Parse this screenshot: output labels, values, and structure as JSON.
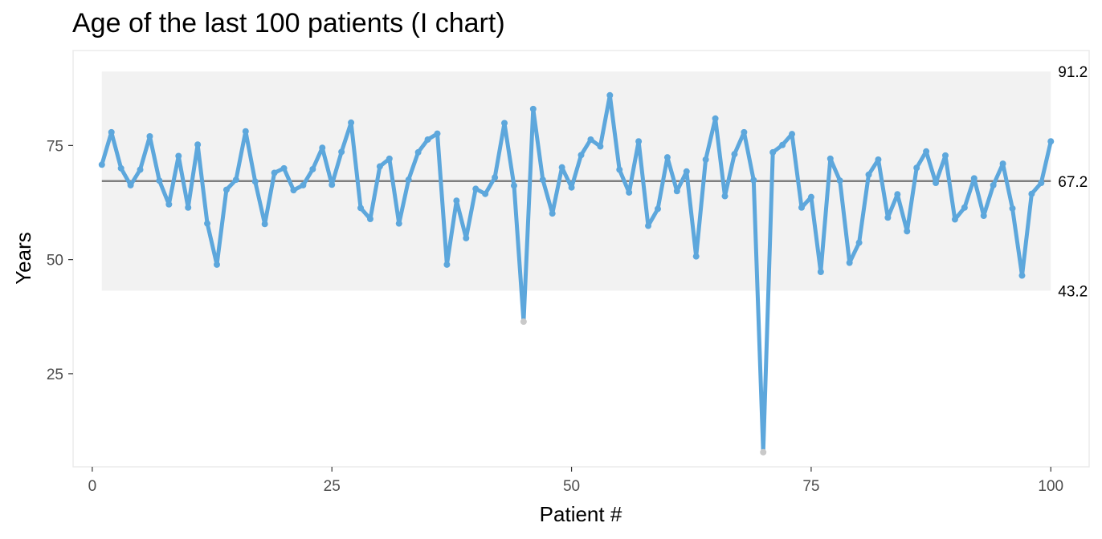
{
  "chart_data": {
    "type": "line",
    "title": "Age of the last 100 patients (I chart)",
    "xlabel": "Patient #",
    "ylabel": "Years",
    "xlim": [
      -2,
      104
    ],
    "ylim": [
      4.6,
      95.8
    ],
    "x_ticks": [
      0,
      25,
      50,
      75,
      100
    ],
    "y_ticks": [
      25,
      50,
      75
    ],
    "grid": false,
    "center_line": 67.2,
    "control_limits": {
      "lower": 43.2,
      "upper": 91.2
    },
    "limit_labels": [
      "91.2",
      "67.2",
      "43.2"
    ],
    "colors": {
      "series": "#5da7dc",
      "out_of_control_point": "#c9c9c9",
      "center_line": "#7f7f7f",
      "limit_band": "#f2f2f2",
      "panel_border": "#ebebeb"
    },
    "series": [
      {
        "x": [
          1,
          2,
          3,
          4,
          5,
          6,
          7,
          8,
          9,
          10,
          11,
          12,
          13,
          14,
          15,
          16,
          17,
          18,
          19,
          20,
          21,
          22,
          23,
          24,
          25,
          26,
          27,
          28,
          29,
          30,
          31,
          32,
          33,
          34,
          35,
          36,
          37,
          38,
          39,
          40,
          41,
          42,
          43,
          44,
          45,
          46,
          47,
          48,
          49,
          50,
          51,
          52,
          53,
          54,
          55,
          56,
          57,
          58,
          59,
          60,
          61,
          62,
          63,
          64,
          65,
          66,
          67,
          68,
          69,
          70,
          71,
          72,
          73,
          74,
          75,
          76,
          77,
          78,
          79,
          80,
          81,
          82,
          83,
          84,
          85,
          86,
          87,
          88,
          89,
          90,
          91,
          92,
          93,
          94,
          95,
          96,
          97,
          98,
          99,
          100
        ],
        "values": [
          70.8,
          77.9,
          70.0,
          66.3,
          69.7,
          77.0,
          67.3,
          62.1,
          72.7,
          61.4,
          75.2,
          57.9,
          48.9,
          65.3,
          67.5,
          78.1,
          67.1,
          57.8,
          69.0,
          70.0,
          65.2,
          66.3,
          69.8,
          74.5,
          66.4,
          73.6,
          80.0,
          61.3,
          58.9,
          70.4,
          72.1,
          57.9,
          67.5,
          73.5,
          76.3,
          77.6,
          48.9,
          62.9,
          54.7,
          65.5,
          64.4,
          68.0,
          79.9,
          66.2,
          36.4,
          83.0,
          67.5,
          60.1,
          70.2,
          65.8,
          72.9,
          76.3,
          74.8,
          86.0,
          69.7,
          64.7,
          75.9,
          57.4,
          61.1,
          72.4,
          65.0,
          69.3,
          50.7,
          71.9,
          80.9,
          63.9,
          73.1,
          77.9,
          67.4,
          7.8,
          73.5,
          75.1,
          77.5,
          61.4,
          63.7,
          47.3,
          72.1,
          67.3,
          49.3,
          53.7,
          68.6,
          71.9,
          59.2,
          64.3,
          56.2,
          70.1,
          73.7,
          66.8,
          72.8,
          58.8,
          61.4,
          67.8,
          59.6,
          66.3,
          71.0,
          61.2,
          46.5,
          64.4,
          66.8,
          75.9
        ],
        "out_of_control_indices": [
          44,
          69
        ]
      }
    ]
  }
}
